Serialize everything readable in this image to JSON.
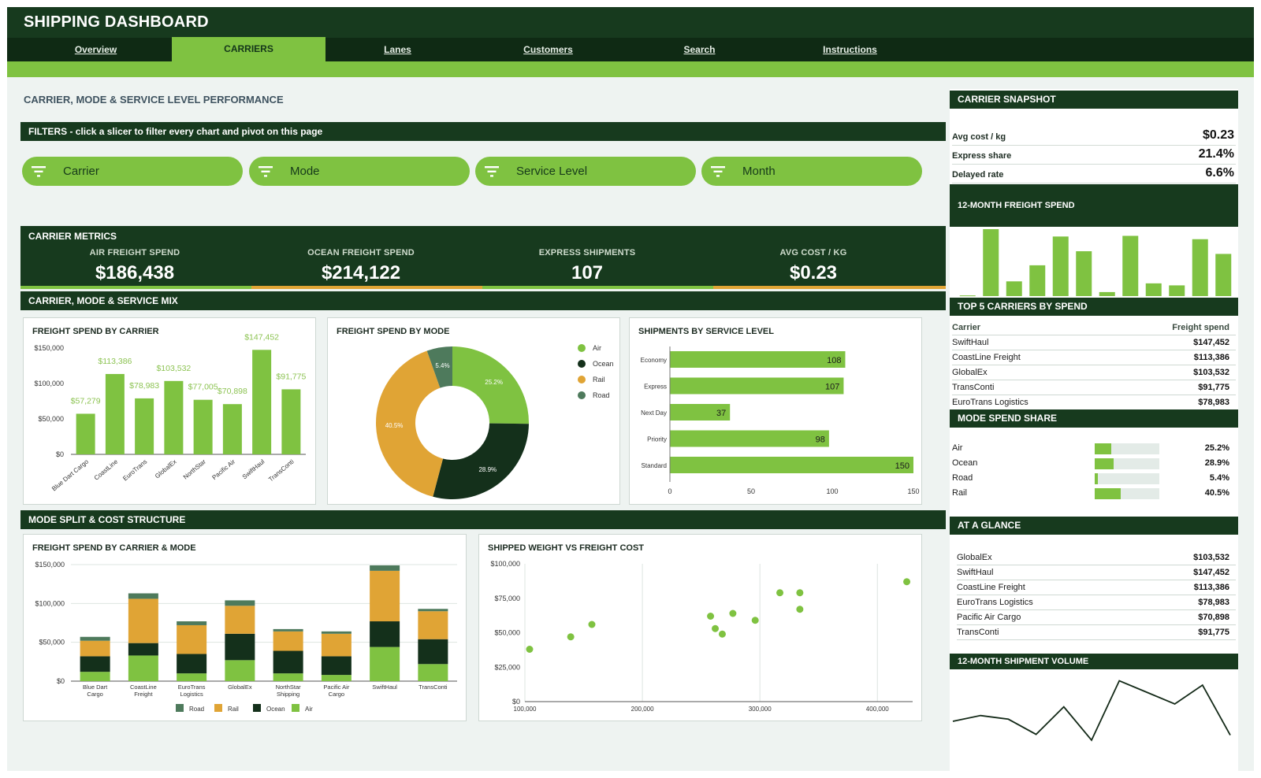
{
  "app": {
    "title": "SHIPPING DASHBOARD"
  },
  "nav": {
    "tabs": [
      "Overview",
      "CARRIERS",
      "Lanes",
      "Customers",
      "Search",
      "Instructions"
    ],
    "active": "CARRIERS"
  },
  "page": {
    "title": "CARRIER, MODE & SERVICE LEVEL PERFORMANCE"
  },
  "filters": {
    "band_label": "FILTERS  -  click a slicer to filter every chart and pivot on this page",
    "slicers": [
      "Carrier",
      "Mode",
      "Service Level",
      "Month"
    ],
    "icon": "filter-icon"
  },
  "metrics": {
    "title": "CARRIER METRICS",
    "items": [
      {
        "label": "AIR FREIGHT SPEND",
        "value": "$186,438"
      },
      {
        "label": "OCEAN FREIGHT SPEND",
        "value": "$214,122"
      },
      {
        "label": "EXPRESS SHIPMENTS",
        "value": "107"
      },
      {
        "label": "AVG COST / KG",
        "value": "$0.23"
      }
    ]
  },
  "sections": {
    "mix": "CARRIER, MODE & SERVICE MIX",
    "split": "MODE SPLIT & COST STRUCTURE"
  },
  "colors": {
    "dark": "#173a1e",
    "green": "#7fc241",
    "orange": "#e0a435",
    "darkest": "#14301b",
    "slate": "#4e7a5c"
  },
  "chart_data": [
    {
      "id": "spend_by_carrier",
      "type": "bar",
      "title": "FREIGHT SPEND BY CARRIER",
      "categories": [
        "Blue Dart Cargo",
        "CoastLine",
        "EuroTrans",
        "GlobalEx",
        "NorthStar",
        "Pacific Air",
        "SwiftHaul",
        "TransConti"
      ],
      "values": [
        57279,
        113386,
        78983,
        103532,
        77005,
        70898,
        147452,
        91775
      ],
      "data_labels": [
        "$57,279",
        "$113,386",
        "$78,983",
        "$103,532",
        "$77,005",
        "$70,898",
        "$147,452",
        "$91,775"
      ],
      "yticks": [
        "$150,000",
        "$100,000",
        "$50,000",
        "$0"
      ],
      "ylim": [
        0,
        150000
      ]
    },
    {
      "id": "spend_by_mode",
      "type": "pie",
      "title": "FREIGHT SPEND BY MODE",
      "labels": [
        "Air",
        "Ocean",
        "Rail",
        "Road"
      ],
      "values": [
        25.2,
        28.9,
        40.5,
        5.4
      ],
      "slice_labels": [
        "25.2%",
        "28.9%",
        "40.5%",
        "5.4%"
      ],
      "legend": "right"
    },
    {
      "id": "shipments_by_service",
      "type": "bar",
      "orientation": "horizontal",
      "title": "SHIPMENTS BY SERVICE LEVEL",
      "categories": [
        "Economy",
        "Express",
        "Next Day",
        "Priority",
        "Standard"
      ],
      "values": [
        108,
        107,
        37,
        98,
        150
      ],
      "xticks": [
        "0",
        "50",
        "100",
        "150"
      ],
      "xlim": [
        0,
        150
      ]
    },
    {
      "id": "spend_by_carrier_mode",
      "type": "bar",
      "stacked": true,
      "title": "FREIGHT SPEND BY CARRIER & MODE",
      "categories": [
        "Blue Dart Cargo",
        "CoastLine Freight",
        "EuroTrans Logistics",
        "GlobalEx",
        "NorthStar Shipping",
        "Pacific Air Cargo",
        "SwiftHaul",
        "TransConti"
      ],
      "series": [
        {
          "name": "Air",
          "values": [
            12000,
            33000,
            10000,
            27000,
            10000,
            8000,
            44000,
            22000
          ]
        },
        {
          "name": "Ocean",
          "values": [
            20000,
            16000,
            25000,
            34000,
            29000,
            24000,
            33000,
            32000
          ]
        },
        {
          "name": "Rail",
          "values": [
            20000,
            57000,
            37000,
            36000,
            25000,
            29000,
            65000,
            36000
          ]
        },
        {
          "name": "Road",
          "values": [
            5000,
            7000,
            5000,
            7000,
            3000,
            3000,
            7000,
            3000
          ]
        }
      ],
      "yticks": [
        "$150,000",
        "$100,000",
        "$50,000",
        "$0"
      ],
      "ylim": [
        0,
        150000
      ],
      "legend_order": [
        "Road",
        "Rail",
        "Ocean",
        "Air"
      ],
      "legend": "bottom"
    },
    {
      "id": "weight_vs_cost",
      "type": "scatter",
      "title": "SHIPPED WEIGHT VS FREIGHT COST",
      "x": [
        104000,
        139000,
        157000,
        258000,
        262000,
        268000,
        277000,
        296000,
        317000,
        334000,
        334000,
        425000
      ],
      "y": [
        38000,
        47000,
        56000,
        62000,
        53000,
        49000,
        64000,
        59000,
        79000,
        79000,
        67000,
        87000
      ],
      "xticks": [
        "100,000",
        "200,000",
        "300,000",
        "400,000"
      ],
      "yticks": [
        "$100,000",
        "$75,000",
        "$50,000",
        "$25,000",
        "$0"
      ],
      "xlim": [
        100000,
        430000
      ],
      "ylim": [
        0,
        100000
      ]
    },
    {
      "id": "freight_spend_12m",
      "type": "bar",
      "title": "12-MONTH FREIGHT SPEND",
      "values": [
        1,
        100,
        22,
        46,
        89,
        67,
        6,
        90,
        19,
        16,
        85,
        63
      ]
    },
    {
      "id": "shipment_volume_12m",
      "type": "line",
      "title": "12-MONTH SHIPMENT VOLUME",
      "values": [
        38,
        46,
        41,
        20,
        58,
        12,
        94,
        78,
        62,
        88,
        19
      ]
    }
  ],
  "snapshot": {
    "title": "CARRIER SNAPSHOT",
    "rows": [
      {
        "k": "Avg cost / kg",
        "v": "$0.23"
      },
      {
        "k": "Express share",
        "v": "21.4%"
      },
      {
        "k": "Delayed rate",
        "v": "6.6%"
      }
    ]
  },
  "top5": {
    "title": "TOP 5 CARRIERS BY SPEND",
    "col_carrier": "Carrier",
    "col_spend": "Freight spend",
    "rows": [
      {
        "name": "SwiftHaul",
        "spend": "$147,452"
      },
      {
        "name": "CoastLine Freight",
        "spend": "$113,386"
      },
      {
        "name": "GlobalEx",
        "spend": "$103,532"
      },
      {
        "name": "TransConti",
        "spend": "$91,775"
      },
      {
        "name": "EuroTrans Logistics",
        "spend": "$78,983"
      }
    ]
  },
  "mode_share": {
    "title": "MODE SPEND SHARE",
    "rows": [
      {
        "mode": "Air",
        "pct": "25.2%",
        "share": 0.252
      },
      {
        "mode": "Ocean",
        "pct": "28.9%",
        "share": 0.289
      },
      {
        "mode": "Road",
        "pct": "5.4%",
        "share": 0.054
      },
      {
        "mode": "Rail",
        "pct": "40.5%",
        "share": 0.405
      }
    ]
  },
  "at_a_glance": {
    "title": "AT A GLANCE",
    "rows": [
      {
        "name": "GlobalEx",
        "spend": "$103,532"
      },
      {
        "name": "SwiftHaul",
        "spend": "$147,452"
      },
      {
        "name": "CoastLine Freight",
        "spend": "$113,386"
      },
      {
        "name": "EuroTrans Logistics",
        "spend": "$78,983"
      },
      {
        "name": "Pacific Air Cargo",
        "spend": "$70,898"
      },
      {
        "name": "TransConti",
        "spend": "$91,775"
      }
    ]
  }
}
